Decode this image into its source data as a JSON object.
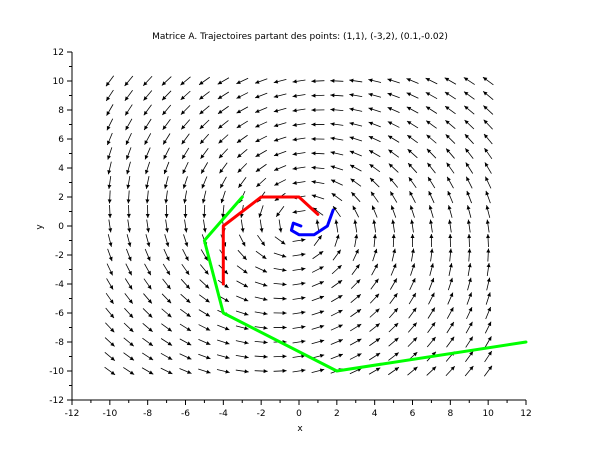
{
  "chart_data": {
    "type": "vector-field",
    "title": "Matrice A. Trajectoires partant des points: (1,1), (-3,2), (0.1,-0.02)",
    "xlabel": "x",
    "ylabel": "y",
    "xlim": [
      -12,
      12
    ],
    "ylim": [
      -12,
      12
    ],
    "xticks": [
      -12,
      -10,
      -8,
      -6,
      -4,
      -2,
      0,
      2,
      4,
      6,
      8,
      10,
      12
    ],
    "yticks": [
      -12,
      -10,
      -8,
      -6,
      -4,
      -2,
      0,
      2,
      4,
      6,
      8,
      10,
      12
    ],
    "grid": false,
    "field": {
      "description_matrix": [
        [
          -0.15,
          -1.0
        ],
        [
          1.0,
          -0.15
        ]
      ],
      "x_range": [
        -10,
        10
      ],
      "y_range": [
        -10,
        10
      ],
      "step": 1
    },
    "series": [
      {
        "color": "#ff0000",
        "points": [
          [
            1,
            0.8
          ],
          [
            0,
            2
          ],
          [
            -2,
            2
          ],
          [
            -4,
            0
          ],
          [
            -4,
            -4
          ]
        ]
      },
      {
        "color": "#00ff00",
        "points": [
          [
            -3,
            2
          ],
          [
            -5,
            -1
          ],
          [
            -4,
            -6
          ],
          [
            2,
            -10
          ],
          [
            12,
            -8
          ]
        ]
      },
      {
        "color": "#0000ff",
        "points": [
          [
            1.8,
            1.1
          ],
          [
            1.5,
            0
          ],
          [
            0.8,
            -0.6
          ],
          [
            0,
            -0.6
          ],
          [
            -0.4,
            -0.3
          ],
          [
            -0.3,
            0.2
          ],
          [
            0.1,
            0.0
          ]
        ]
      }
    ]
  }
}
